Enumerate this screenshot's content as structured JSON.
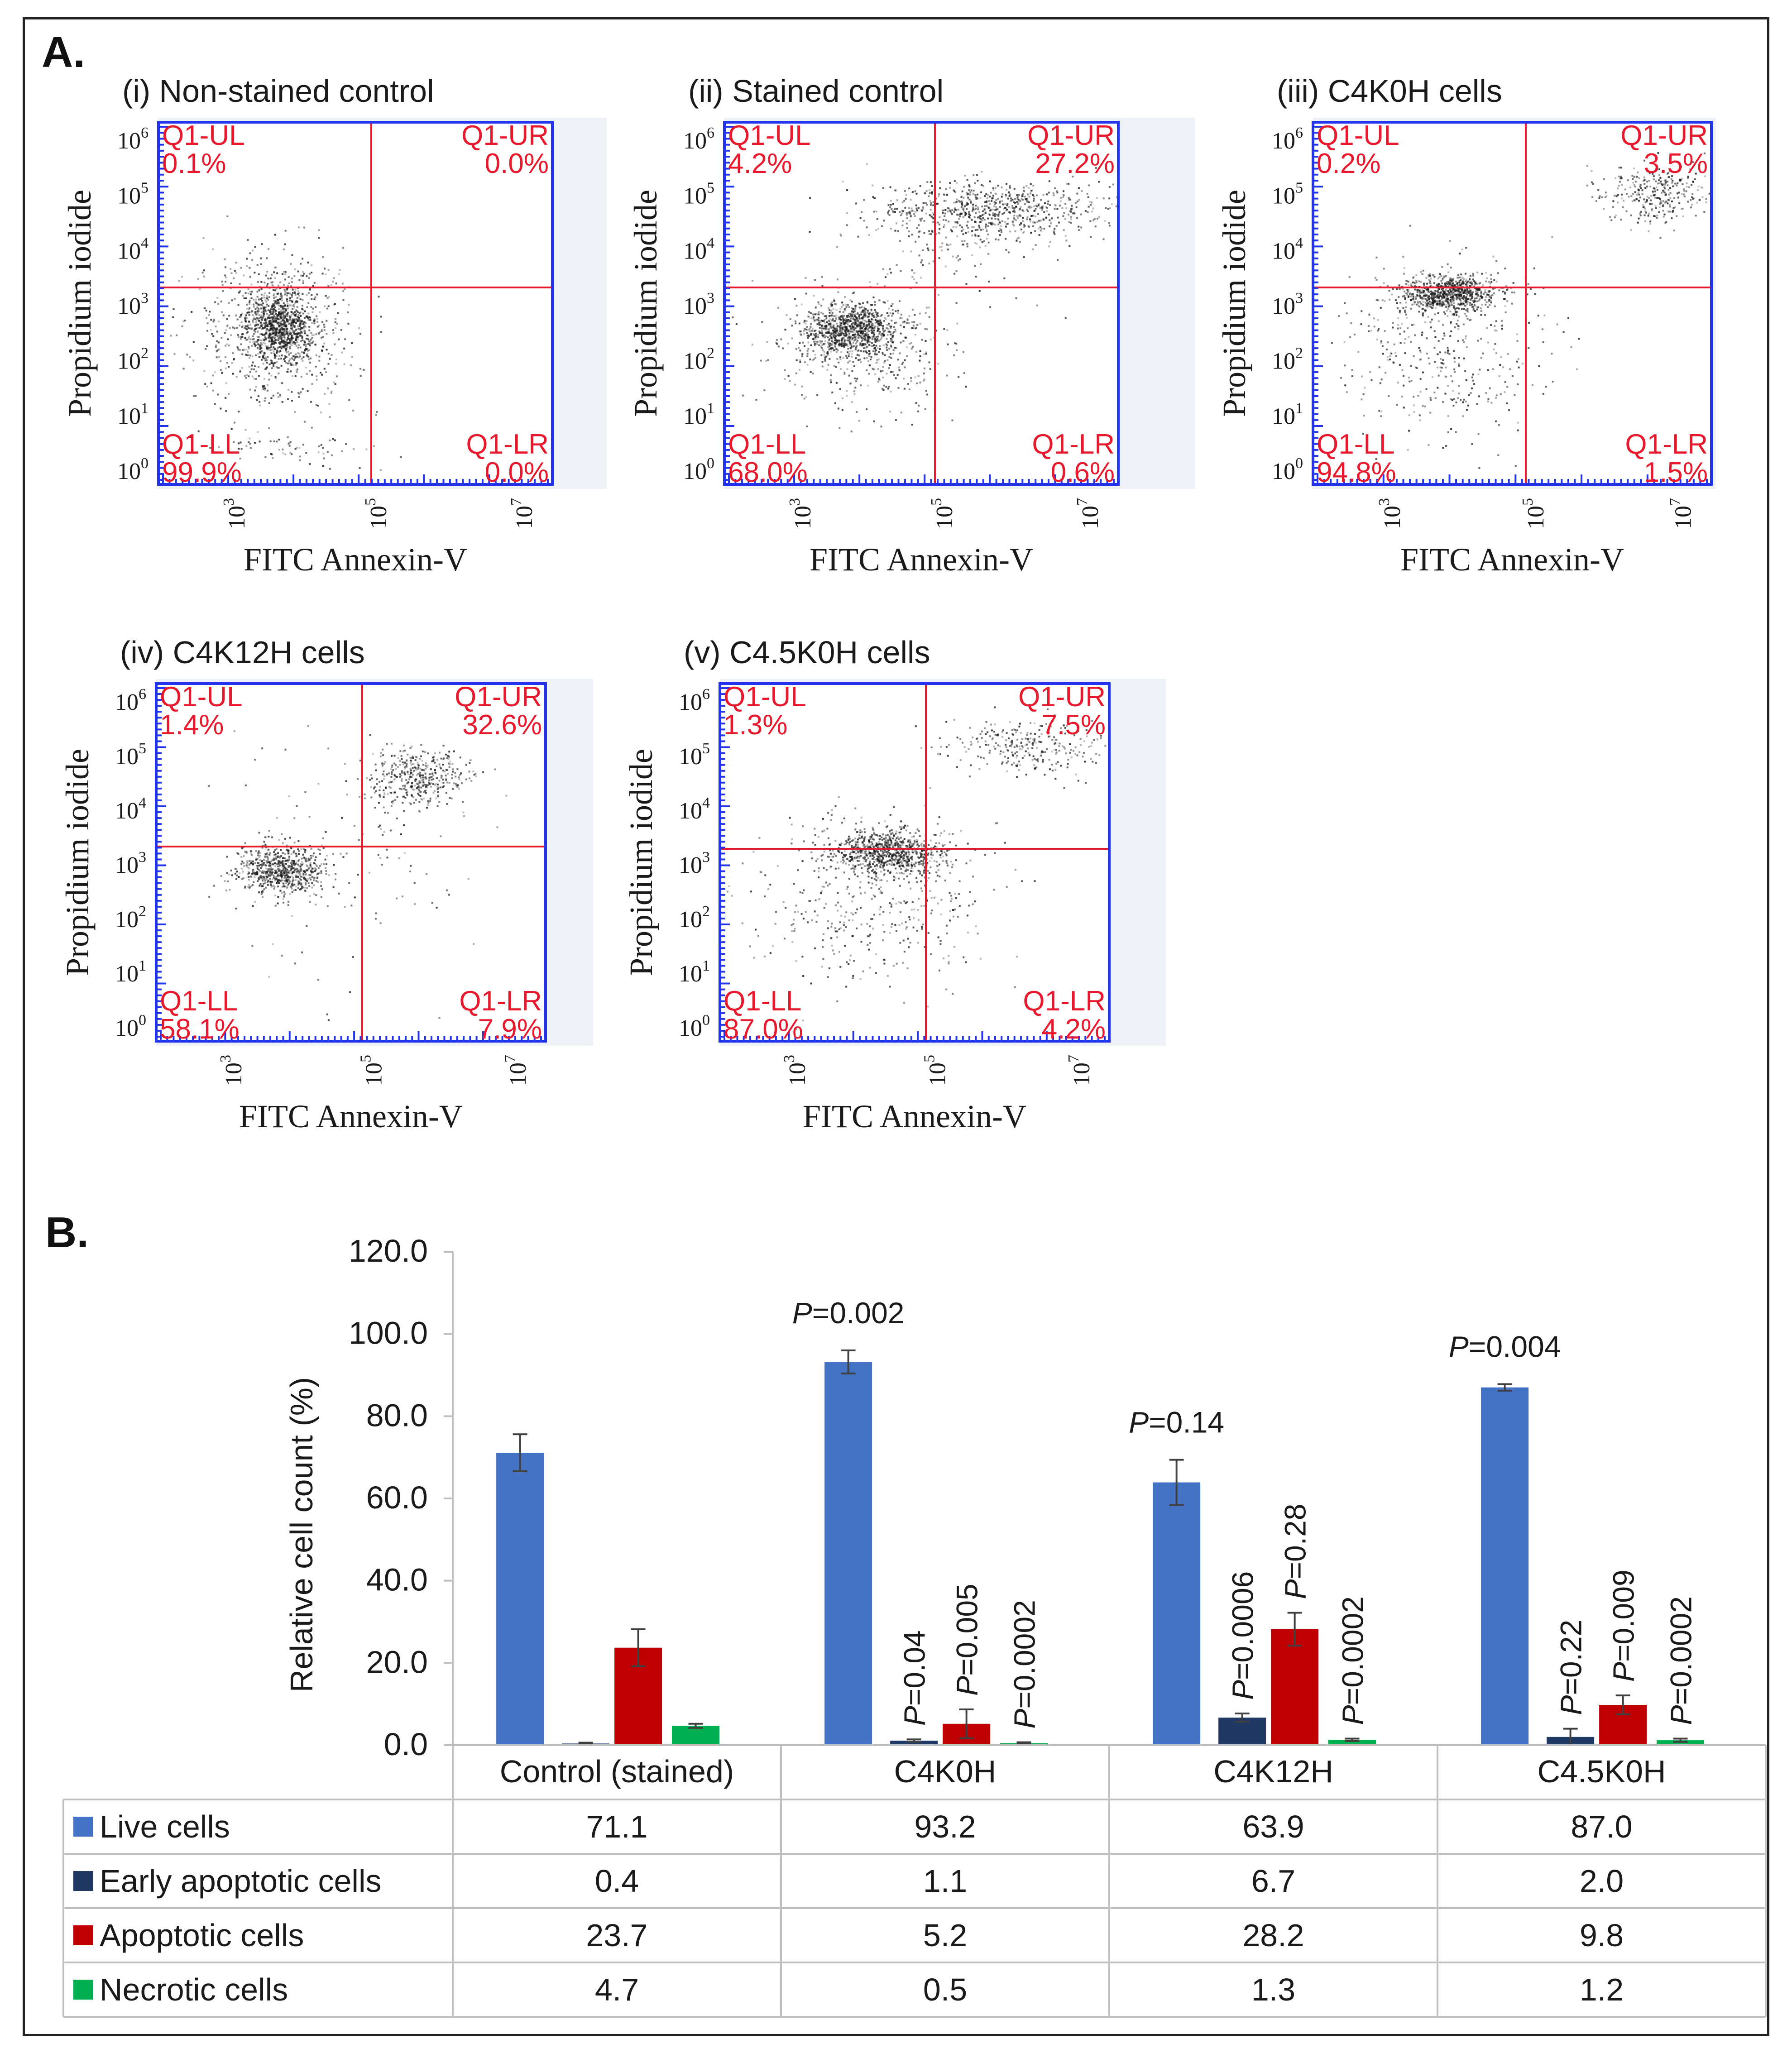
{
  "labels": {
    "panel_a": "A.",
    "panel_b": "B."
  },
  "colors": {
    "quadrant_line": "#e8192c",
    "plot_border": "#2233ee",
    "live": "#4472c4",
    "early": "#1f3864",
    "apoptotic": "#c00000",
    "necrotic": "#00b050"
  },
  "scatter_plots": [
    {
      "title": "(i) Non-stained control",
      "xlabel": "FITC Annexin-V",
      "ylabel": "Propidium iodide",
      "q": {
        "ul_name": "Q1-UL",
        "ul": "0.1%",
        "ur_name": "Q1-UR",
        "ur": "0.0%",
        "ll_name": "Q1-LL",
        "ll": "99.9%",
        "lr_name": "Q1-LR",
        "lr": "0.0%"
      }
    },
    {
      "title": "(ii) Stained control",
      "xlabel": "FITC Annexin-V",
      "ylabel": "Propidium iodide",
      "q": {
        "ul_name": "Q1-UL",
        "ul": "4.2%",
        "ur_name": "Q1-UR",
        "ur": "27.2%",
        "ll_name": "Q1-LL",
        "ll": "68.0%",
        "lr_name": "Q1-LR",
        "lr": "0.6%"
      }
    },
    {
      "title": "(iii) C4K0H cells",
      "xlabel": "FITC Annexin-V",
      "ylabel": "Propidium iodide",
      "q": {
        "ul_name": "Q1-UL",
        "ul": "0.2%",
        "ur_name": "Q1-UR",
        "ur": "3.5%",
        "ll_name": "Q1-LL",
        "ll": "94.8%",
        "lr_name": "Q1-LR",
        "lr": "1.5%"
      }
    },
    {
      "title": "(iv) C4K12H cells",
      "xlabel": "FITC Annexin-V",
      "ylabel": "Propidium iodide",
      "q": {
        "ul_name": "Q1-UL",
        "ul": "1.4%",
        "ur_name": "Q1-UR",
        "ur": "32.6%",
        "ll_name": "Q1-LL",
        "ll": "58.1%",
        "lr_name": "Q1-LR",
        "lr": "7.9%"
      }
    },
    {
      "title": "(v) C4.5K0H cells",
      "xlabel": "FITC Annexin-V",
      "ylabel": "Propidium iodide",
      "q": {
        "ul_name": "Q1-UL",
        "ul": "1.3%",
        "ur_name": "Q1-UR",
        "ur": "7.5%",
        "ll_name": "Q1-LL",
        "ll": "87.0%",
        "lr_name": "Q1-LR",
        "lr": "4.2%"
      }
    }
  ],
  "chart_data": {
    "type": "bar",
    "ylabel": "Relative cell count (%)",
    "ylim": [
      0,
      120
    ],
    "yticks": [
      "0.0",
      "20.0",
      "40.0",
      "60.0",
      "80.0",
      "100.0",
      "120.0"
    ],
    "categories": [
      "Control (stained)",
      "C4K0H",
      "C4K12H",
      "C4.5K0H"
    ],
    "series": [
      {
        "name": "Live cells",
        "values": [
          71.1,
          93.2,
          63.9,
          87.0
        ],
        "display": [
          "71.1",
          "93.2",
          "63.9",
          "87.0"
        ],
        "errors": [
          4.5,
          2.8,
          5.5,
          0.8
        ]
      },
      {
        "name": "Early apoptotic cells",
        "values": [
          0.4,
          1.1,
          6.7,
          2.0
        ],
        "display": [
          "0.4",
          "1.1",
          "6.7",
          "2.0"
        ],
        "errors": [
          0.2,
          0.3,
          1.0,
          2.0
        ]
      },
      {
        "name": "Apoptotic cells",
        "values": [
          23.7,
          5.2,
          28.2,
          9.8
        ],
        "display": [
          "23.7",
          "5.2",
          "28.2",
          "9.8"
        ],
        "errors": [
          4.5,
          3.5,
          4.0,
          2.3
        ]
      },
      {
        "name": "Necrotic cells",
        "values": [
          4.7,
          0.5,
          1.3,
          1.2
        ],
        "display": [
          "4.7",
          "0.5",
          "1.3",
          "1.2"
        ],
        "errors": [
          0.5,
          0.2,
          0.3,
          0.4
        ]
      }
    ],
    "p_values": [
      [
        "",
        "",
        "",
        ""
      ],
      [
        "P=0.002",
        "P=0.04",
        "P=0.005",
        "P=0.0002"
      ],
      [
        "P=0.14",
        "P=0.0006",
        "P=0.28",
        "P=0.0002"
      ],
      [
        "P=0.004",
        "P=0.22",
        "P=0.009",
        "P=0.0002"
      ]
    ]
  }
}
